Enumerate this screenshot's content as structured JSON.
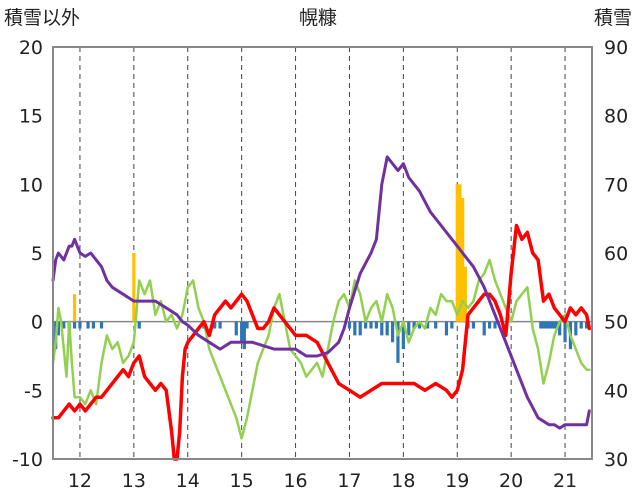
{
  "chart_data": {
    "type": "line",
    "title": "幌糠",
    "ylabel_left": "積雪以外",
    "ylabel_right": "積雪",
    "ylim_left": [
      -10,
      20
    ],
    "yticks_left": [
      -10,
      -5,
      0,
      5,
      10,
      15,
      20
    ],
    "ylim_right": [
      30,
      90
    ],
    "yticks_right": [
      30,
      40,
      50,
      60,
      70,
      80,
      90
    ],
    "xlim": [
      11.5,
      21.5
    ],
    "xticks": [
      12,
      13,
      14,
      15,
      16,
      17,
      18,
      19,
      20,
      21
    ],
    "xtick_labels": [
      "12",
      "13",
      "14",
      "15",
      "16",
      "17",
      "18",
      "19",
      "20",
      "21"
    ],
    "grid": {
      "vertical": "dashed",
      "horizontal": "none"
    },
    "series": [
      {
        "axis": "right",
        "color": "#7030a0",
        "x": [
          11.5,
          11.55,
          11.6,
          11.7,
          11.8,
          11.85,
          11.9,
          12.0,
          12.1,
          12.2,
          12.4,
          12.5,
          12.6,
          12.8,
          13.0,
          13.2,
          13.4,
          13.6,
          13.8,
          13.9,
          14.0,
          14.2,
          14.4,
          14.6,
          14.8,
          15.0,
          15.2,
          15.4,
          15.6,
          15.8,
          16.0,
          16.2,
          16.4,
          16.6,
          16.8,
          16.9,
          17.0,
          17.2,
          17.4,
          17.5,
          17.55,
          17.6,
          17.7,
          17.8,
          17.9,
          18.0,
          18.1,
          18.3,
          18.5,
          18.7,
          18.9,
          19.0,
          19.1,
          19.3,
          19.5,
          19.7,
          19.9,
          20.1,
          20.3,
          20.5,
          20.7,
          20.8,
          20.9,
          21.0,
          21.2,
          21.4,
          21.45
        ],
        "y": [
          56,
          59,
          60,
          59,
          61,
          61,
          62,
          60,
          59.5,
          60,
          58,
          56,
          55,
          54,
          53,
          53,
          53,
          52,
          51,
          50,
          49.5,
          48,
          47,
          46,
          47,
          47,
          47,
          46.5,
          46,
          46,
          46,
          45,
          45,
          45.5,
          47,
          49,
          52,
          57,
          60,
          62,
          66,
          70,
          74,
          73,
          72,
          73,
          71,
          69,
          66,
          64,
          62,
          61,
          60,
          58,
          55,
          51,
          47,
          43,
          39,
          36,
          35,
          35,
          34.5,
          35,
          35,
          35,
          37
        ]
      },
      {
        "axis": "left",
        "color": "#ff0000",
        "x": [
          11.5,
          11.6,
          11.7,
          11.8,
          11.9,
          12.0,
          12.1,
          12.2,
          12.3,
          12.4,
          12.5,
          12.6,
          12.7,
          12.8,
          12.9,
          13.0,
          13.1,
          13.2,
          13.3,
          13.4,
          13.5,
          13.6,
          13.7,
          13.75,
          13.8,
          13.85,
          13.9,
          13.95,
          14.0,
          14.1,
          14.2,
          14.3,
          14.4,
          14.5,
          14.6,
          14.7,
          14.8,
          14.9,
          15.0,
          15.1,
          15.2,
          15.3,
          15.4,
          15.5,
          15.6,
          15.7,
          15.8,
          15.9,
          16.0,
          16.2,
          16.4,
          16.6,
          16.8,
          17.0,
          17.2,
          17.4,
          17.6,
          17.8,
          18.0,
          18.2,
          18.4,
          18.6,
          18.8,
          18.9,
          19.0,
          19.1,
          19.2,
          19.3,
          19.4,
          19.5,
          19.6,
          19.7,
          19.8,
          19.9,
          20.0,
          20.1,
          20.2,
          20.3,
          20.4,
          20.5,
          20.6,
          20.7,
          20.8,
          20.9,
          21.0,
          21.1,
          21.2,
          21.3,
          21.4,
          21.45
        ],
        "y": [
          -7,
          -7,
          -6.5,
          -6,
          -6.5,
          -6,
          -6.5,
          -6,
          -5.5,
          -5.5,
          -5,
          -4.5,
          -4,
          -3.5,
          -4,
          -3,
          -2.5,
          -4,
          -4.5,
          -5,
          -4.5,
          -5,
          -8,
          -10,
          -10,
          -8,
          -4,
          -2,
          -1.5,
          -1,
          -0.5,
          0,
          -1,
          0.5,
          1,
          1.5,
          1,
          1.5,
          2,
          1.5,
          0.5,
          -0.5,
          -0.5,
          0,
          1,
          0.5,
          0,
          -0.5,
          -1,
          -1,
          -1.5,
          -3,
          -4.5,
          -5,
          -5.5,
          -5,
          -4.5,
          -4.5,
          -4.5,
          -4.5,
          -5,
          -4.5,
          -5,
          -5.5,
          -5,
          -3.5,
          0.5,
          1,
          1.5,
          2,
          2,
          1.5,
          0.5,
          -1,
          3.5,
          7,
          6,
          6.5,
          5,
          4.5,
          1.5,
          2,
          1,
          0.5,
          0,
          1,
          0.5,
          1,
          0.5,
          -0.5
        ]
      },
      {
        "axis": "left",
        "color": "#92d050",
        "x": [
          11.5,
          11.55,
          11.6,
          11.65,
          11.7,
          11.75,
          11.8,
          11.85,
          11.9,
          12.0,
          12.1,
          12.2,
          12.3,
          12.4,
          12.5,
          12.6,
          12.7,
          12.8,
          12.9,
          13.0,
          13.1,
          13.2,
          13.3,
          13.4,
          13.5,
          13.6,
          13.7,
          13.8,
          13.9,
          14.0,
          14.1,
          14.2,
          14.3,
          14.4,
          14.5,
          14.6,
          14.7,
          14.8,
          14.9,
          15.0,
          15.1,
          15.2,
          15.3,
          15.4,
          15.5,
          15.6,
          15.7,
          15.8,
          15.9,
          16.0,
          16.1,
          16.2,
          16.3,
          16.4,
          16.5,
          16.6,
          16.7,
          16.8,
          16.9,
          17.0,
          17.1,
          17.2,
          17.3,
          17.4,
          17.5,
          17.6,
          17.7,
          17.8,
          17.9,
          18.0,
          18.1,
          18.2,
          18.3,
          18.4,
          18.5,
          18.6,
          18.7,
          18.8,
          18.9,
          19.0,
          19.1,
          19.2,
          19.3,
          19.4,
          19.5,
          19.6,
          19.7,
          19.8,
          19.9,
          20.0,
          20.1,
          20.2,
          20.3,
          20.4,
          20.5,
          20.6,
          20.7,
          20.8,
          20.9,
          21.0,
          21.1,
          21.2,
          21.3,
          21.4,
          21.45
        ],
        "y": [
          -3,
          -1.5,
          1,
          0,
          -2,
          -4,
          0,
          -3,
          -5.5,
          -5.5,
          -6,
          -5,
          -6,
          -3,
          -1,
          -2,
          -1.5,
          -3,
          -2.5,
          -1.5,
          3,
          2,
          3,
          0.5,
          1.5,
          0,
          0.5,
          -0.5,
          0.5,
          2.5,
          3,
          1,
          0,
          -2,
          -3,
          -4,
          -5,
          -6,
          -7,
          -8.5,
          -7,
          -5,
          -3,
          -2,
          -1,
          1,
          2,
          0,
          -2,
          -2.5,
          -3,
          -4,
          -3.5,
          -3,
          -4,
          -2,
          0,
          1.5,
          2,
          1,
          3,
          2,
          0,
          1,
          1.5,
          0,
          2,
          1,
          -1,
          0,
          -1.5,
          -0.5,
          0,
          -0.5,
          1,
          0.5,
          2,
          1.5,
          1.5,
          0.5,
          1.5,
          1,
          1.5,
          3,
          3.5,
          4.5,
          3,
          2,
          1,
          0,
          1.5,
          2,
          2.5,
          -0.5,
          -2,
          -4.5,
          -3,
          -1,
          0,
          0.5,
          -1,
          -2,
          -3,
          -3.5,
          -3.5
        ]
      }
    ],
    "bars_left_axis": [
      {
        "color": "#ffc000",
        "x": [
          11.9,
          13.0,
          19.0,
          19.05,
          19.1,
          19.15
        ],
        "values": [
          2,
          5,
          10,
          10,
          9,
          4
        ]
      },
      {
        "color": "#2e75b6",
        "x": [
          11.55,
          11.6,
          11.7,
          11.8,
          11.9,
          12.0,
          12.15,
          12.25,
          12.4,
          13.1,
          14.3,
          14.5,
          14.6,
          14.9,
          15.0,
          15.05,
          15.1,
          17.0,
          17.1,
          17.2,
          17.3,
          17.4,
          17.5,
          17.6,
          17.7,
          17.8,
          17.9,
          18.0,
          18.1,
          18.2,
          18.3,
          18.45,
          18.6,
          18.8,
          18.9,
          19.2,
          19.3,
          19.5,
          19.6,
          19.7,
          20.55,
          20.6,
          20.65,
          20.7,
          20.75,
          20.8,
          20.85,
          20.9,
          21.0,
          21.1,
          21.2,
          21.3,
          21.4
        ],
        "values": [
          -2,
          -1,
          -0.5,
          -0.5,
          -0.5,
          -0.5,
          -0.5,
          -0.5,
          -0.5,
          -0.5,
          -0.5,
          -0.5,
          -0.5,
          -1,
          -1.5,
          -2,
          -0.5,
          -0.5,
          -1,
          -1,
          -0.5,
          -0.5,
          -0.5,
          -1,
          -1,
          -1.5,
          -3,
          -2,
          -1,
          -0.5,
          -0.5,
          -0.5,
          -0.5,
          -1,
          -0.5,
          -0.5,
          -0.5,
          -1,
          -0.5,
          -0.5,
          -0.5,
          -0.5,
          -0.5,
          -0.5,
          -0.5,
          -0.5,
          -0.5,
          -1,
          -1.5,
          -2,
          -1,
          -0.5,
          -0.5
        ]
      }
    ]
  }
}
